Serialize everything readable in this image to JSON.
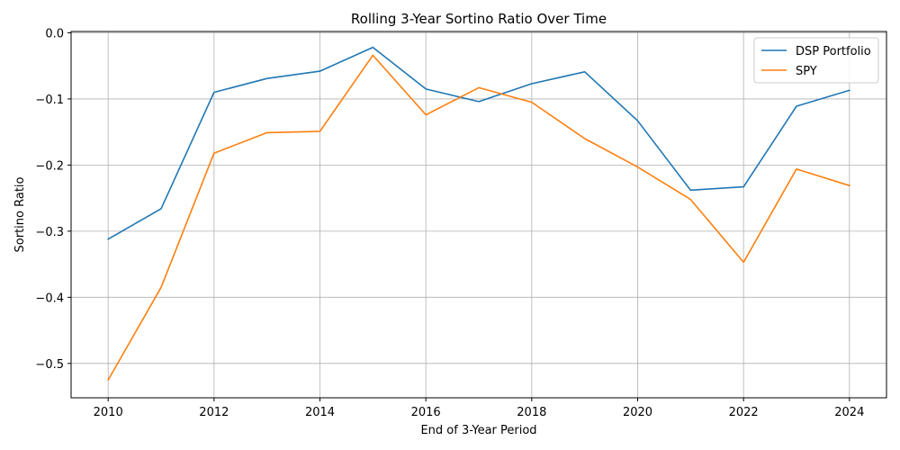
{
  "chart_data": {
    "type": "line",
    "title": "Rolling 3-Year Sortino Ratio Over Time",
    "xlabel": "End of 3-Year Period",
    "ylabel": "Sortino Ratio",
    "x": [
      2010,
      2011,
      2012,
      2013,
      2014,
      2015,
      2016,
      2017,
      2018,
      2019,
      2020,
      2021,
      2022,
      2023,
      2024
    ],
    "xlim": [
      2009.3,
      2024.7
    ],
    "ylim": [
      -0.552,
      0.002
    ],
    "x_ticks": [
      2010,
      2012,
      2014,
      2016,
      2018,
      2020,
      2022,
      2024
    ],
    "x_tick_labels": [
      "2010",
      "2012",
      "2014",
      "2016",
      "2018",
      "2020",
      "2022",
      "2024"
    ],
    "y_ticks": [
      -0.5,
      -0.4,
      -0.3,
      -0.2,
      -0.1,
      0.0
    ],
    "y_tick_labels": [
      "−0.5",
      "−0.4",
      "−0.3",
      "−0.2",
      "−0.1",
      "0.0"
    ],
    "grid": true,
    "legend_position": "top-right",
    "series": [
      {
        "name": "DSP Portfolio",
        "color": "#1f77b4",
        "values": [
          -0.312,
          -0.266,
          -0.09,
          -0.069,
          -0.058,
          -0.022,
          -0.085,
          -0.104,
          -0.077,
          -0.059,
          -0.133,
          -0.238,
          -0.233,
          -0.111,
          -0.087
        ]
      },
      {
        "name": "SPY",
        "color": "#ff7f0e",
        "values": [
          -0.525,
          -0.385,
          -0.182,
          -0.151,
          -0.149,
          -0.034,
          -0.124,
          -0.083,
          -0.105,
          -0.16,
          -0.203,
          -0.252,
          -0.347,
          -0.206,
          -0.231
        ]
      }
    ]
  }
}
